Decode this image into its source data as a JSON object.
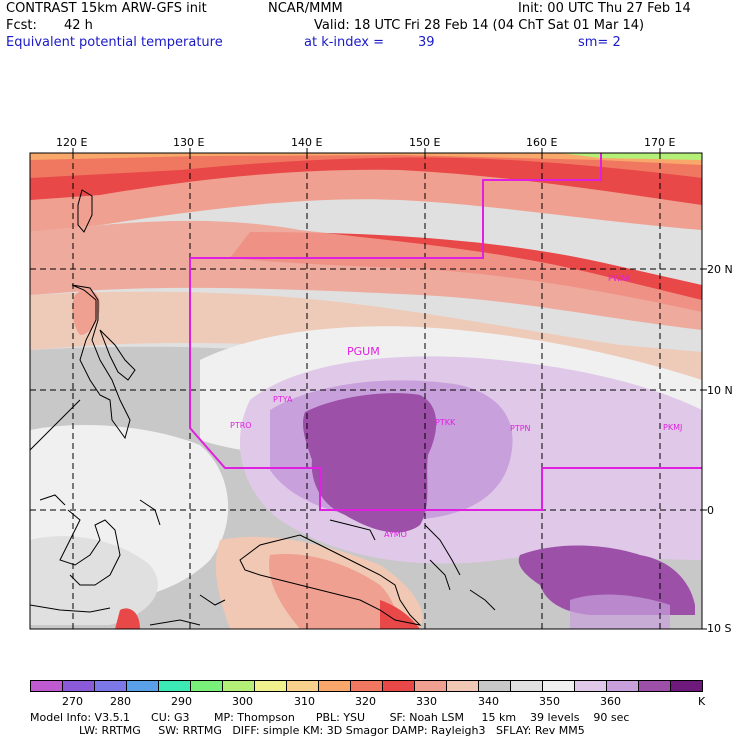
{
  "header": {
    "title": "CONTRAST 15km ARW-GFS init",
    "org": "NCAR/MMM",
    "init": "Init: 00 UTC Thu 27 Feb 14",
    "fcst_label": "Fcst:",
    "fcst_value": "42 h",
    "valid": "Valid: 18 UTC Fri 28 Feb 14 (04 ChT Sat 01 Mar 14)",
    "field": "Equivalent potential temperature",
    "level": "at k-index =",
    "level_value": "39",
    "smooth": "sm= 2"
  },
  "map": {
    "lon_labels": [
      "120 E",
      "130 E",
      "140 E",
      "150 E",
      "160 E",
      "170 E"
    ],
    "lat_labels": [
      "20 N",
      "10 N",
      "0",
      "10 S"
    ],
    "stations": [
      {
        "id": "PGUM"
      },
      {
        "id": "PTYA"
      },
      {
        "id": "PTRO"
      },
      {
        "id": "PTKK"
      },
      {
        "id": "PTPN"
      },
      {
        "id": "PKMJ"
      },
      {
        "id": "PWAK"
      },
      {
        "id": "AYMO"
      }
    ]
  },
  "colorbar": {
    "unit": "K",
    "labels": [
      "270",
      "280",
      "290",
      "300",
      "310",
      "320",
      "330",
      "340",
      "350",
      "360"
    ],
    "colors": [
      "#c05ad0",
      "#8a5ad8",
      "#7d78e8",
      "#5aa0e8",
      "#3ce8b4",
      "#78f07a",
      "#b4f078",
      "#f0f08c",
      "#f8d28c",
      "#f8a86a",
      "#f07860",
      "#e84848",
      "#f0a090",
      "#f0c8b4",
      "#c8c8c8",
      "#e0e0e0",
      "#f0f0f0",
      "#e0c8e8",
      "#c8a0dc",
      "#9c50a8",
      "#6e1a7c"
    ]
  },
  "model_info": {
    "line1": "Model Info: V3.5.1      CU: G3       MP: Thompson      PBL: YSU       SF: Noah LSM     15 km    39 levels    90 sec",
    "line2": "              LW: RRTMG     SW: RRTMG   DIFF: simple KM: 3D Smagor DAMP: Rayleigh3   SFLAY: Rev MM5"
  }
}
